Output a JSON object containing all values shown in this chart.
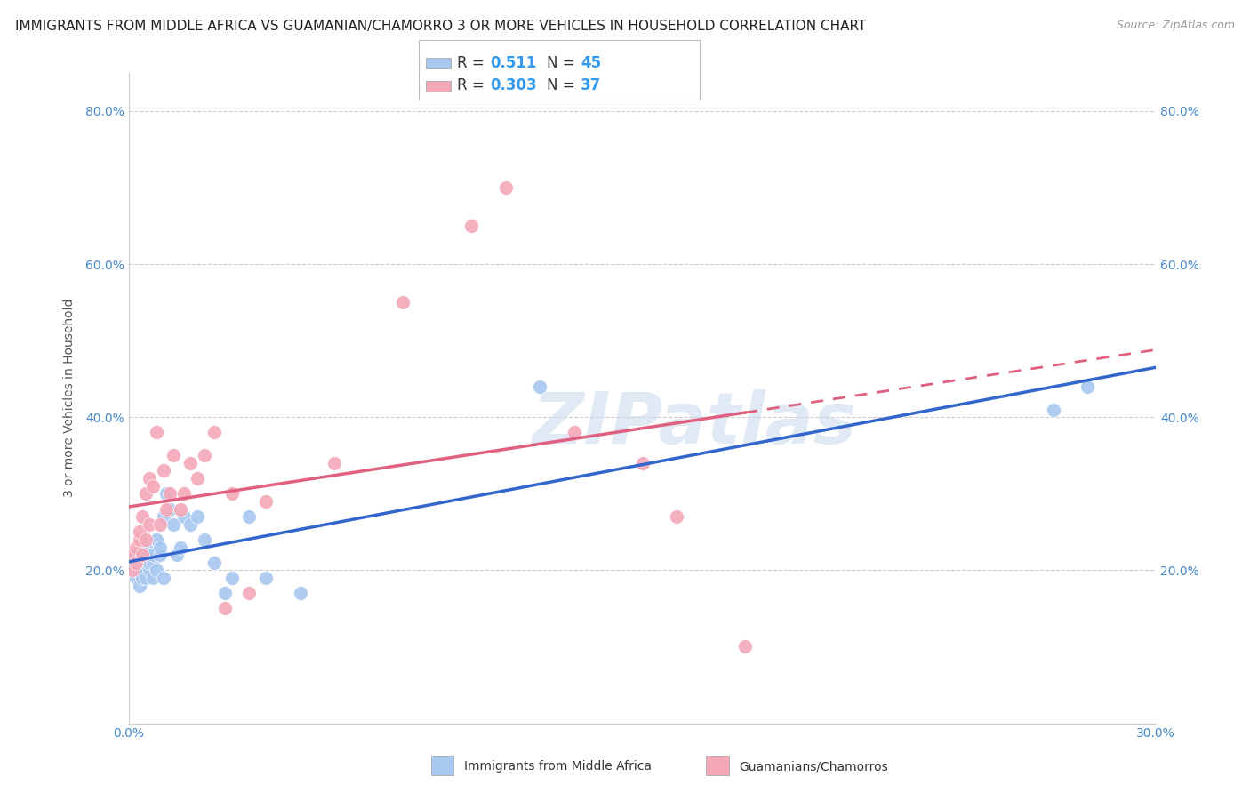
{
  "title": "IMMIGRANTS FROM MIDDLE AFRICA VS GUAMANIAN/CHAMORRO 3 OR MORE VEHICLES IN HOUSEHOLD CORRELATION CHART",
  "source": "Source: ZipAtlas.com",
  "ylabel": "3 or more Vehicles in Household",
  "xlim": [
    0.0,
    0.3
  ],
  "ylim": [
    0.0,
    0.85
  ],
  "x_ticks": [
    0.0,
    0.05,
    0.1,
    0.15,
    0.2,
    0.25,
    0.3
  ],
  "x_tick_labels": [
    "0.0%",
    "",
    "",
    "",
    "",
    "",
    "30.0%"
  ],
  "y_ticks": [
    0.0,
    0.2,
    0.4,
    0.6,
    0.8
  ],
  "y_tick_labels": [
    "",
    "20.0%",
    "40.0%",
    "60.0%",
    "80.0%"
  ],
  "R_blue": 0.511,
  "N_blue": 45,
  "R_pink": 0.303,
  "N_pink": 37,
  "blue_color": "#A8C8F0",
  "pink_color": "#F4A8B8",
  "line_blue_color": "#3366CC",
  "line_pink_color": "#E06080",
  "legend_label_blue": "Immigrants from Middle Africa",
  "legend_label_pink": "Guamanians/Chamorros",
  "watermark": "ZIPatlas",
  "blue_scatter_x": [
    0.001,
    0.001,
    0.002,
    0.002,
    0.002,
    0.003,
    0.003,
    0.003,
    0.004,
    0.004,
    0.004,
    0.005,
    0.005,
    0.005,
    0.005,
    0.006,
    0.006,
    0.006,
    0.007,
    0.007,
    0.007,
    0.008,
    0.008,
    0.009,
    0.009,
    0.01,
    0.01,
    0.011,
    0.012,
    0.013,
    0.014,
    0.015,
    0.016,
    0.018,
    0.02,
    0.022,
    0.025,
    0.028,
    0.03,
    0.035,
    0.04,
    0.05,
    0.12,
    0.27,
    0.28
  ],
  "blue_scatter_y": [
    0.2,
    0.21,
    0.19,
    0.2,
    0.22,
    0.18,
    0.21,
    0.2,
    0.19,
    0.21,
    0.22,
    0.2,
    0.21,
    0.19,
    0.23,
    0.2,
    0.22,
    0.21,
    0.19,
    0.21,
    0.22,
    0.2,
    0.24,
    0.22,
    0.23,
    0.19,
    0.27,
    0.3,
    0.28,
    0.26,
    0.22,
    0.23,
    0.27,
    0.26,
    0.27,
    0.24,
    0.21,
    0.17,
    0.19,
    0.27,
    0.19,
    0.17,
    0.44,
    0.41,
    0.44
  ],
  "pink_scatter_x": [
    0.001,
    0.001,
    0.002,
    0.002,
    0.003,
    0.003,
    0.004,
    0.004,
    0.005,
    0.005,
    0.006,
    0.006,
    0.007,
    0.008,
    0.009,
    0.01,
    0.011,
    0.012,
    0.013,
    0.015,
    0.016,
    0.018,
    0.02,
    0.022,
    0.025,
    0.028,
    0.03,
    0.035,
    0.04,
    0.06,
    0.08,
    0.1,
    0.11,
    0.13,
    0.15,
    0.16,
    0.18
  ],
  "pink_scatter_y": [
    0.2,
    0.22,
    0.21,
    0.23,
    0.24,
    0.25,
    0.22,
    0.27,
    0.3,
    0.24,
    0.26,
    0.32,
    0.31,
    0.38,
    0.26,
    0.33,
    0.28,
    0.3,
    0.35,
    0.28,
    0.3,
    0.34,
    0.32,
    0.35,
    0.38,
    0.15,
    0.3,
    0.17,
    0.29,
    0.34,
    0.55,
    0.65,
    0.7,
    0.38,
    0.34,
    0.27,
    0.1
  ],
  "grid_color": "#CCCCCC",
  "background_color": "#FFFFFF",
  "title_fontsize": 11,
  "axis_label_fontsize": 10,
  "tick_fontsize": 10,
  "source_fontsize": 9
}
